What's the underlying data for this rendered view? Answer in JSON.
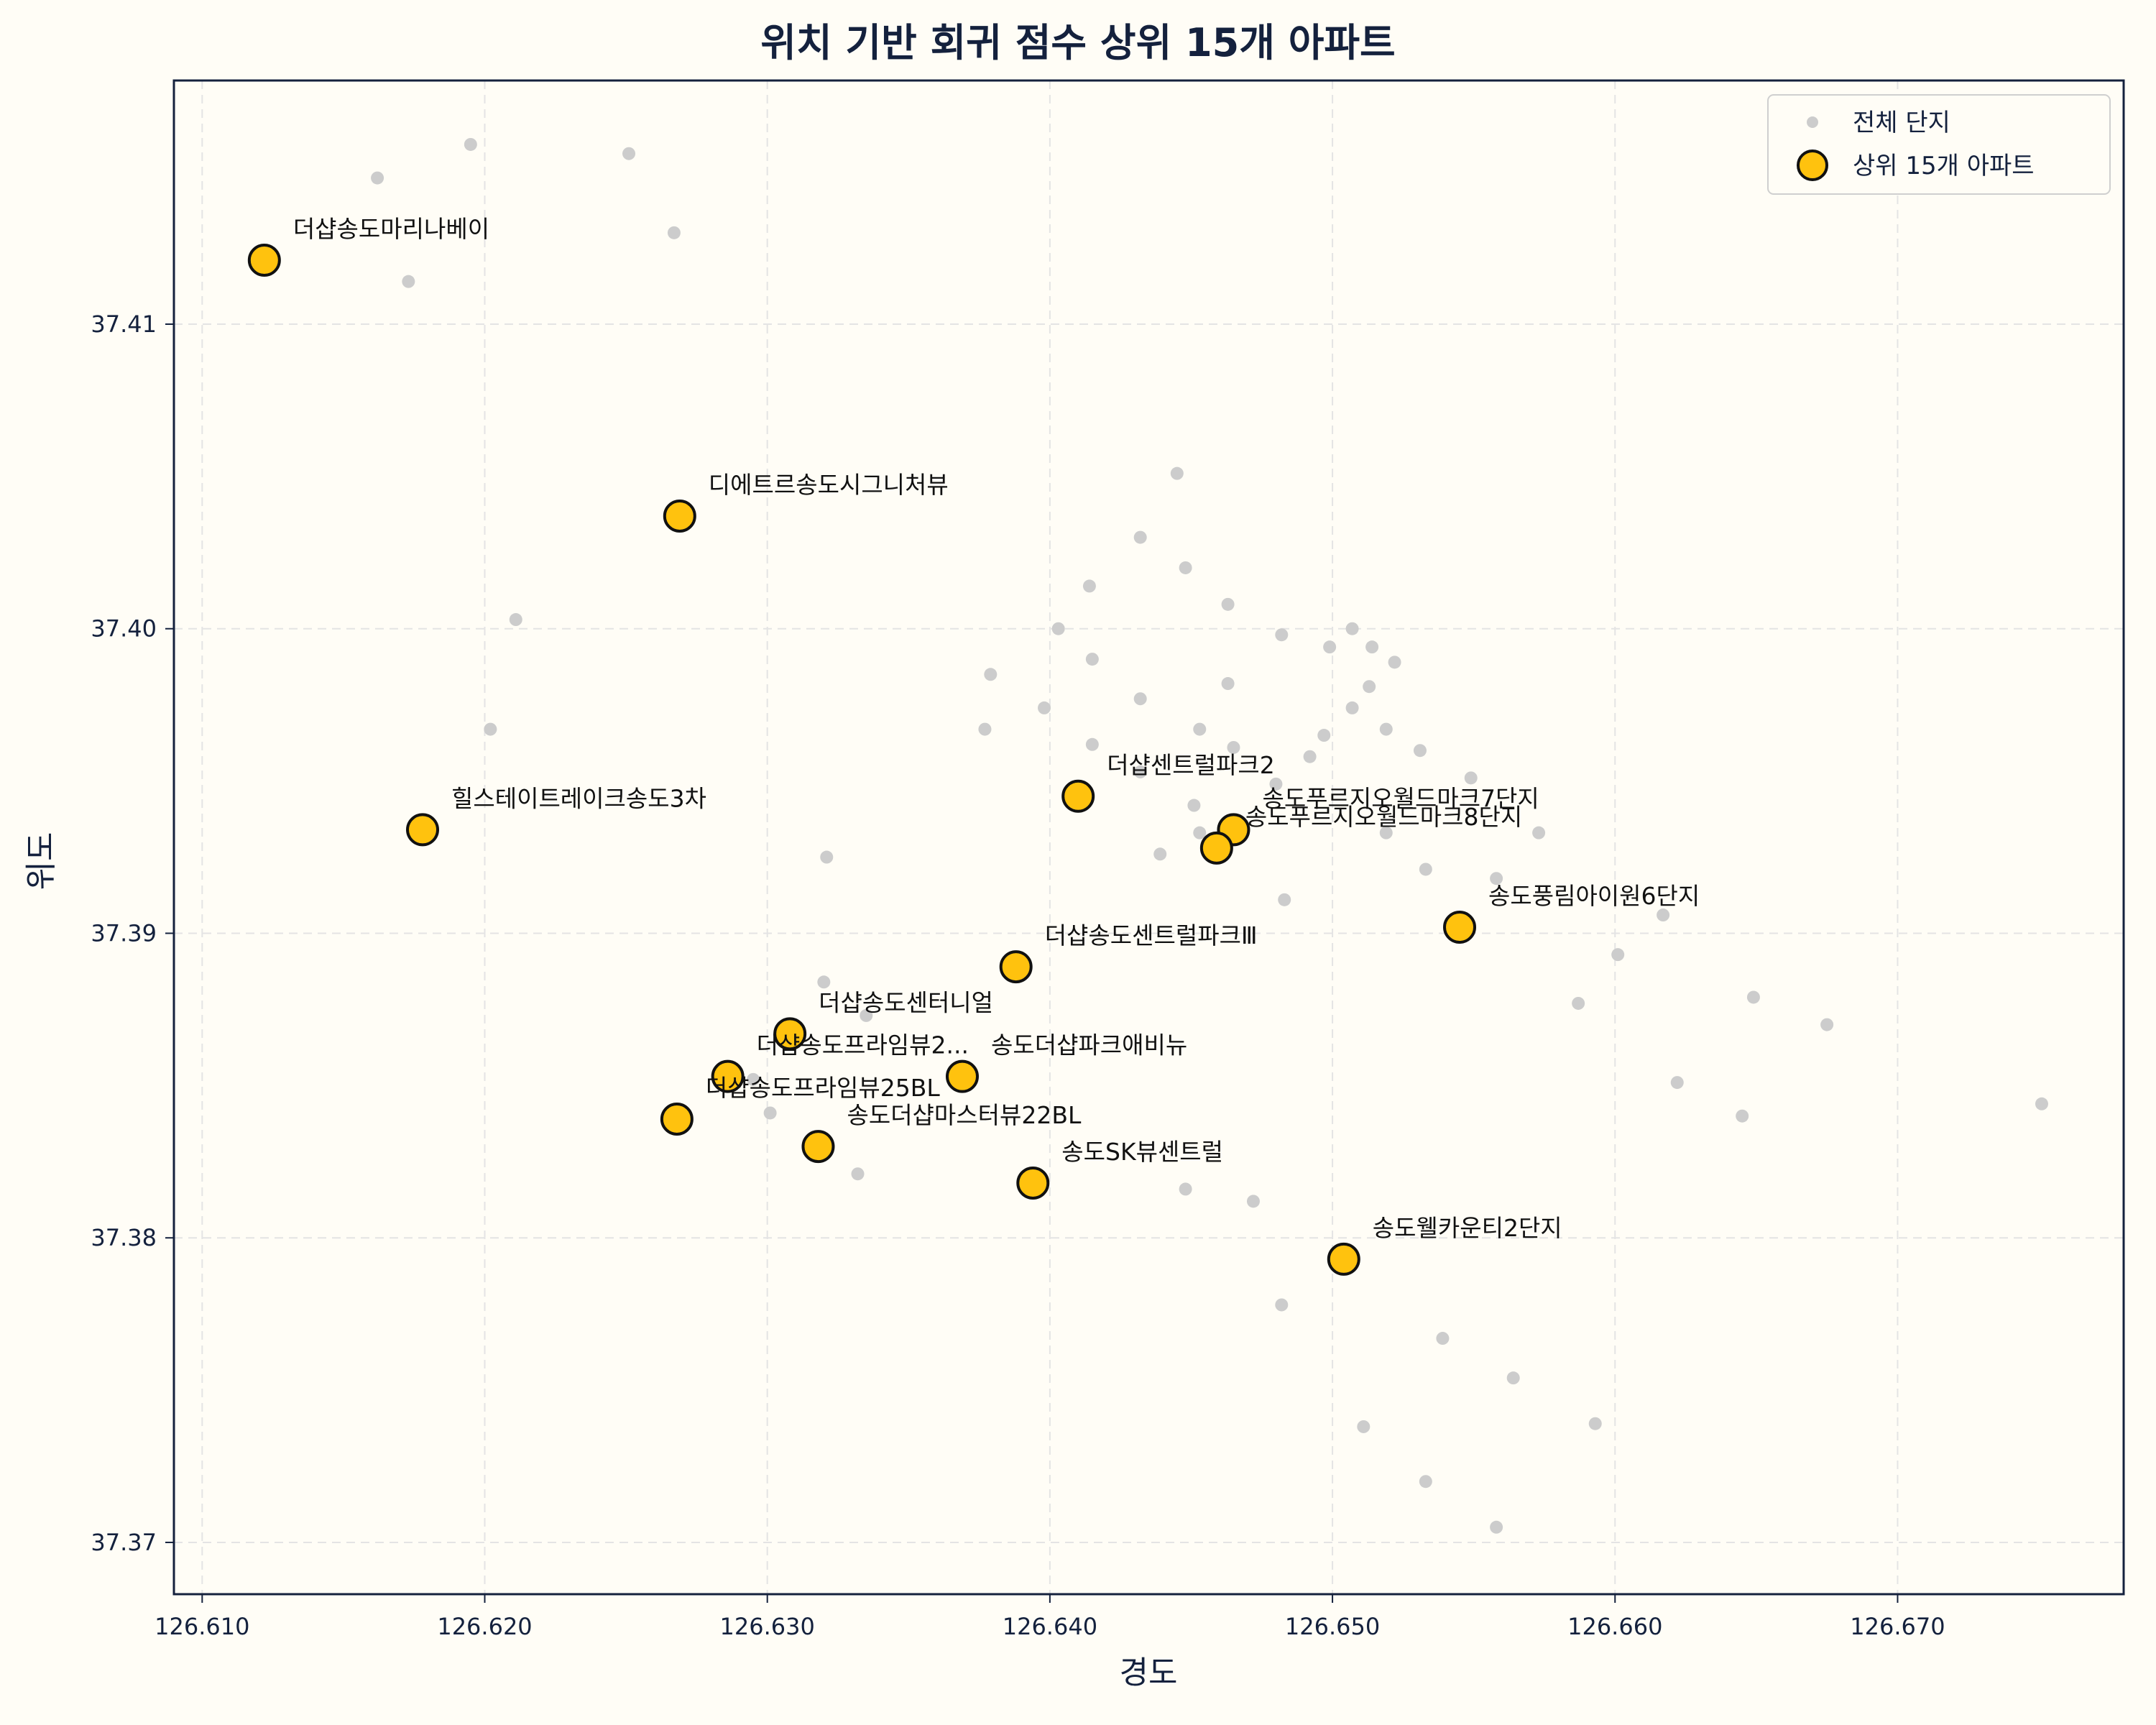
{
  "chart_data": {
    "type": "scatter",
    "title": "위치 기반 회귀 점수 상위 15개 아파트",
    "xlabel": "경도",
    "ylabel": "위도",
    "xlim": [
      126.609,
      126.678
    ],
    "ylim": [
      37.3683,
      37.418
    ],
    "grid": true,
    "legend_position": "top-right",
    "x_ticks": [
      126.61,
      126.62,
      126.63,
      126.64,
      126.65,
      126.66,
      126.67
    ],
    "x_tick_labels": [
      "126.610",
      "126.620",
      "126.630",
      "126.640",
      "126.650",
      "126.660",
      "126.670"
    ],
    "y_ticks": [
      37.37,
      37.38,
      37.39,
      37.4,
      37.41
    ],
    "y_tick_labels": [
      "37.37",
      "37.38",
      "37.39",
      "37.40",
      "37.41"
    ],
    "colors": {
      "all": "#cccccc",
      "top": "#ffc20e",
      "top_edge": "#111111",
      "axis": "#14213d",
      "background": "#fffdf6"
    },
    "series": [
      {
        "name": "전체 단지",
        "points": [
          [
            126.6162,
            37.4148
          ],
          [
            126.6195,
            37.4159
          ],
          [
            126.6251,
            37.4156
          ],
          [
            126.6267,
            37.413
          ],
          [
            126.6173,
            37.4114
          ],
          [
            126.6211,
            37.4003
          ],
          [
            126.6202,
            37.3967
          ],
          [
            126.6445,
            37.4051
          ],
          [
            126.6432,
            37.403
          ],
          [
            126.6448,
            37.402
          ],
          [
            126.6414,
            37.4014
          ],
          [
            126.6463,
            37.4008
          ],
          [
            126.6403,
            37.4
          ],
          [
            126.6482,
            37.3998
          ],
          [
            126.6507,
            37.4
          ],
          [
            126.6499,
            37.3994
          ],
          [
            126.6514,
            37.3994
          ],
          [
            126.6522,
            37.3989
          ],
          [
            126.6415,
            37.399
          ],
          [
            126.6379,
            37.3985
          ],
          [
            126.6463,
            37.3982
          ],
          [
            126.6513,
            37.3981
          ],
          [
            126.6432,
            37.3977
          ],
          [
            126.6398,
            37.3974
          ],
          [
            126.6507,
            37.3974
          ],
          [
            126.6377,
            37.3967
          ],
          [
            126.6453,
            37.3967
          ],
          [
            126.6497,
            37.3965
          ],
          [
            126.6519,
            37.3967
          ],
          [
            126.6531,
            37.396
          ],
          [
            126.6415,
            37.3962
          ],
          [
            126.6465,
            37.3961
          ],
          [
            126.6492,
            37.3958
          ],
          [
            126.6432,
            37.3953
          ],
          [
            126.648,
            37.3949
          ],
          [
            126.6549,
            37.3951
          ],
          [
            126.6451,
            37.3942
          ],
          [
            126.6453,
            37.3933
          ],
          [
            126.6519,
            37.3933
          ],
          [
            126.6573,
            37.3933
          ],
          [
            126.6321,
            37.3925
          ],
          [
            126.6439,
            37.3926
          ],
          [
            126.6533,
            37.3921
          ],
          [
            126.6558,
            37.3918
          ],
          [
            126.6483,
            37.3911
          ],
          [
            126.6617,
            37.3906
          ],
          [
            126.6601,
            37.3893
          ],
          [
            126.632,
            37.3884
          ],
          [
            126.6335,
            37.3873
          ],
          [
            126.6587,
            37.3877
          ],
          [
            126.6649,
            37.3879
          ],
          [
            126.6675,
            37.387
          ],
          [
            126.6295,
            37.3852
          ],
          [
            126.6622,
            37.3851
          ],
          [
            126.6301,
            37.3841
          ],
          [
            126.6645,
            37.384
          ],
          [
            126.6751,
            37.3844
          ],
          [
            126.6332,
            37.3821
          ],
          [
            126.6448,
            37.3816
          ],
          [
            126.6472,
            37.3812
          ],
          [
            126.6482,
            37.3778
          ],
          [
            126.6539,
            37.3767
          ],
          [
            126.6564,
            37.3754
          ],
          [
            126.6511,
            37.3738
          ],
          [
            126.6593,
            37.3739
          ],
          [
            126.6533,
            37.372
          ],
          [
            126.6558,
            37.3705
          ]
        ]
      },
      {
        "name": "상위 15개 아파트",
        "points": [
          {
            "x": 126.6122,
            "y": 37.4121,
            "label": "더샵송도마리나베이"
          },
          {
            "x": 126.6269,
            "y": 37.4037,
            "label": "디에트르송도시그니처뷰"
          },
          {
            "x": 126.6178,
            "y": 37.3934,
            "label": "힐스테이트레이크송도3차"
          },
          {
            "x": 126.641,
            "y": 37.3945,
            "label": "더샵센트럴파크2"
          },
          {
            "x": 126.6465,
            "y": 37.3934,
            "label": "송도푸르지오월드마크7단지"
          },
          {
            "x": 126.6459,
            "y": 37.3928,
            "label": "송도푸르지오월드마크8단지"
          },
          {
            "x": 126.6545,
            "y": 37.3902,
            "label": "송도풍림아이원6단지"
          },
          {
            "x": 126.6388,
            "y": 37.3889,
            "label": "더샵송도센트럴파크Ⅲ"
          },
          {
            "x": 126.6308,
            "y": 37.3867,
            "label": "더샵송도센터니얼"
          },
          {
            "x": 126.6286,
            "y": 37.3853,
            "label": "더샵송도프라임뷰2..."
          },
          {
            "x": 126.6369,
            "y": 37.3853,
            "label": "송도더샵파크애비뉴"
          },
          {
            "x": 126.6268,
            "y": 37.3839,
            "label": "더샵송도프라임뷰25BL"
          },
          {
            "x": 126.6318,
            "y": 37.383,
            "label": "송도더샵마스터뷰22BL"
          },
          {
            "x": 126.6394,
            "y": 37.3818,
            "label": "송도SK뷰센트럴"
          },
          {
            "x": 126.6504,
            "y": 37.3793,
            "label": "송도웰카운티2단지"
          }
        ]
      }
    ]
  }
}
